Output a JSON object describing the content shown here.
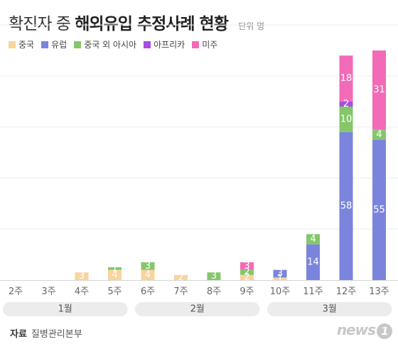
{
  "title": {
    "prefix": "확진자 중",
    "bold": "해외유입 추정사례 현황",
    "unit": "단위 명"
  },
  "source": {
    "label": "자료",
    "name": "질병관리본부"
  },
  "logo": {
    "text": "news",
    "num": "1"
  },
  "chart_data": {
    "type": "bar",
    "stacked": true,
    "categories": [
      "2주",
      "3주",
      "4주",
      "5주",
      "6주",
      "7주",
      "8주",
      "9주",
      "10주",
      "11주",
      "12주",
      "13주"
    ],
    "series": [
      {
        "name": "중국",
        "color": "#f9d49c",
        "values": [
          0,
          0,
          3,
          4,
          4,
          2,
          0,
          2,
          1,
          0,
          0,
          0
        ]
      },
      {
        "name": "유럽",
        "color": "#7b84dc",
        "values": [
          0,
          0,
          0,
          0,
          0,
          0,
          0,
          0,
          3,
          14,
          58,
          55
        ]
      },
      {
        "name": "중국 외 아시아",
        "color": "#85c66b",
        "values": [
          0,
          0,
          0,
          1,
          3,
          0,
          3,
          2,
          0,
          4,
          10,
          4
        ]
      },
      {
        "name": "아프리카",
        "color": "#a64fe0",
        "values": [
          0,
          0,
          0,
          0,
          0,
          0,
          0,
          0,
          0,
          0,
          2,
          0
        ]
      },
      {
        "name": "미주",
        "color": "#f36ab7",
        "values": [
          0,
          0,
          0,
          0,
          0,
          0,
          0,
          3,
          0,
          0,
          18,
          31
        ]
      }
    ],
    "bar_labels": [
      {
        "category": "4주",
        "series": "중국",
        "text": "3"
      },
      {
        "category": "5주",
        "series": "중국",
        "text": "4"
      },
      {
        "category": "5주",
        "series": "중국 외 아시아",
        "text": "1"
      },
      {
        "category": "6주",
        "series": "중국",
        "text": "4"
      },
      {
        "category": "6주",
        "series": "중국 외 아시아",
        "text": "3"
      },
      {
        "category": "7주",
        "series": "중국",
        "text": "2"
      },
      {
        "category": "8주",
        "series": "중국 외 아시아",
        "text": "3"
      },
      {
        "category": "9주",
        "series": "중국",
        "text": "2"
      },
      {
        "category": "9주",
        "series": "중국 외 아시아",
        "text": "2"
      },
      {
        "category": "9주",
        "series": "미주",
        "text": "3"
      },
      {
        "category": "10주",
        "series": "중국",
        "text": "1"
      },
      {
        "category": "10주",
        "series": "유럽",
        "text": "3"
      },
      {
        "category": "11주",
        "series": "중국 외 아시아",
        "text": "4"
      },
      {
        "category": "11주",
        "series": "유럽",
        "text": "14"
      },
      {
        "category": "12주",
        "series": "중국 외 아시아",
        "text": "10"
      },
      {
        "category": "12주",
        "series": "유럽",
        "text": "58"
      },
      {
        "category": "12주",
        "series": "아프리카",
        "text": "2"
      },
      {
        "category": "12주",
        "series": "미주",
        "text": "18"
      },
      {
        "category": "13주",
        "series": "중국 외 아시아",
        "text": "4"
      },
      {
        "category": "13주",
        "series": "유럽",
        "text": "55"
      },
      {
        "category": "13주",
        "series": "미주",
        "text": "31"
      }
    ],
    "month_groups": [
      {
        "label": "1월",
        "from": "2주",
        "to": "5주"
      },
      {
        "label": "2월",
        "from": "6주",
        "to": "9주"
      },
      {
        "label": "3월",
        "from": "10주",
        "to": "13주"
      }
    ],
    "ylim": [
      0,
      107
    ],
    "grid": true
  }
}
